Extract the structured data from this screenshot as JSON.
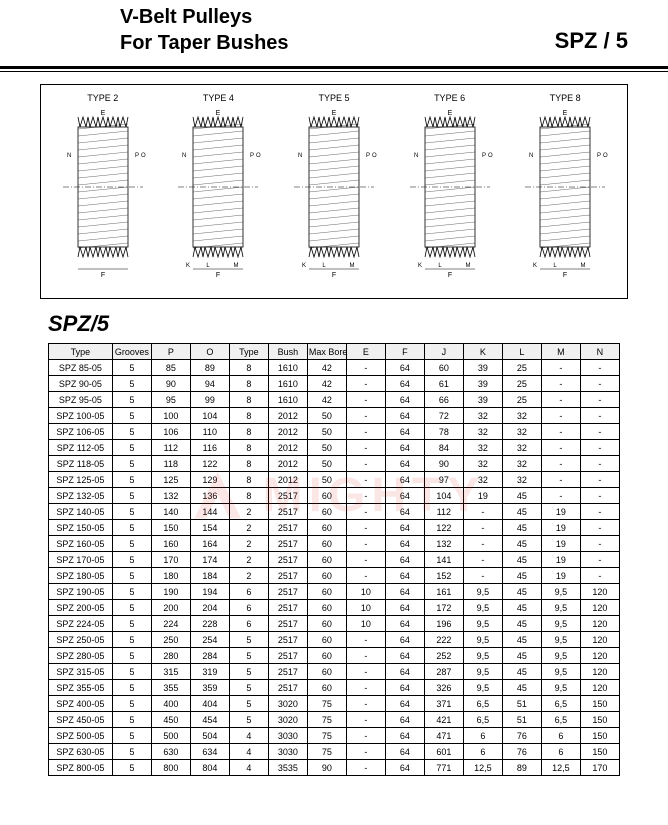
{
  "header": {
    "title_line1": "V-Belt  Pulleys",
    "title_line2": "For Taper Bushes",
    "right_label": "SPZ / 5"
  },
  "diagrams": {
    "labels": [
      "TYPE 2",
      "TYPE 4",
      "TYPE 5",
      "TYPE 6",
      "TYPE 8"
    ],
    "dim_letters": [
      "E",
      "F",
      "L",
      "M",
      "N",
      "K",
      "P",
      "O"
    ]
  },
  "section_title": "SPZ/5",
  "table": {
    "columns": [
      "Type",
      "Grooves",
      "P",
      "O",
      "Type",
      "Bush",
      "Max Bore",
      "E",
      "F",
      "J",
      "K",
      "L",
      "M",
      "N"
    ],
    "rows": [
      [
        "SPZ  85-05",
        "5",
        "85",
        "89",
        "8",
        "1610",
        "42",
        "-",
        "64",
        "60",
        "39",
        "25",
        "-",
        "-"
      ],
      [
        "SPZ  90-05",
        "5",
        "90",
        "94",
        "8",
        "1610",
        "42",
        "-",
        "64",
        "61",
        "39",
        "25",
        "-",
        "-"
      ],
      [
        "SPZ  95-05",
        "5",
        "95",
        "99",
        "8",
        "1610",
        "42",
        "-",
        "64",
        "66",
        "39",
        "25",
        "-",
        "-"
      ],
      [
        "SPZ 100-05",
        "5",
        "100",
        "104",
        "8",
        "2012",
        "50",
        "-",
        "64",
        "72",
        "32",
        "32",
        "-",
        "-"
      ],
      [
        "SPZ 106-05",
        "5",
        "106",
        "110",
        "8",
        "2012",
        "50",
        "-",
        "64",
        "78",
        "32",
        "32",
        "-",
        "-"
      ],
      [
        "SPZ 112-05",
        "5",
        "112",
        "116",
        "8",
        "2012",
        "50",
        "-",
        "64",
        "84",
        "32",
        "32",
        "-",
        "-"
      ],
      [
        "SPZ 118-05",
        "5",
        "118",
        "122",
        "8",
        "2012",
        "50",
        "-",
        "64",
        "90",
        "32",
        "32",
        "-",
        "-"
      ],
      [
        "SPZ 125-05",
        "5",
        "125",
        "129",
        "8",
        "2012",
        "50",
        "-",
        "64",
        "97",
        "32",
        "32",
        "-",
        "-"
      ],
      [
        "SPZ 132-05",
        "5",
        "132",
        "136",
        "8",
        "2517",
        "60",
        "-",
        "64",
        "104",
        "19",
        "45",
        "-",
        "-"
      ],
      [
        "SPZ 140-05",
        "5",
        "140",
        "144",
        "2",
        "2517",
        "60",
        "-",
        "64",
        "112",
        "-",
        "45",
        "19",
        "-"
      ],
      [
        "SPZ 150-05",
        "5",
        "150",
        "154",
        "2",
        "2517",
        "60",
        "-",
        "64",
        "122",
        "-",
        "45",
        "19",
        "-"
      ],
      [
        "SPZ 160-05",
        "5",
        "160",
        "164",
        "2",
        "2517",
        "60",
        "-",
        "64",
        "132",
        "-",
        "45",
        "19",
        "-"
      ],
      [
        "SPZ 170-05",
        "5",
        "170",
        "174",
        "2",
        "2517",
        "60",
        "-",
        "64",
        "141",
        "-",
        "45",
        "19",
        "-"
      ],
      [
        "SPZ 180-05",
        "5",
        "180",
        "184",
        "2",
        "2517",
        "60",
        "-",
        "64",
        "152",
        "-",
        "45",
        "19",
        "-"
      ],
      [
        "SPZ 190-05",
        "5",
        "190",
        "194",
        "6",
        "2517",
        "60",
        "10",
        "64",
        "161",
        "9,5",
        "45",
        "9,5",
        "120"
      ],
      [
        "SPZ 200-05",
        "5",
        "200",
        "204",
        "6",
        "2517",
        "60",
        "10",
        "64",
        "172",
        "9,5",
        "45",
        "9,5",
        "120"
      ],
      [
        "SPZ 224-05",
        "5",
        "224",
        "228",
        "6",
        "2517",
        "60",
        "10",
        "64",
        "196",
        "9,5",
        "45",
        "9,5",
        "120"
      ],
      [
        "SPZ 250-05",
        "5",
        "250",
        "254",
        "5",
        "2517",
        "60",
        "-",
        "64",
        "222",
        "9,5",
        "45",
        "9,5",
        "120"
      ],
      [
        "SPZ 280-05",
        "5",
        "280",
        "284",
        "5",
        "2517",
        "60",
        "-",
        "64",
        "252",
        "9,5",
        "45",
        "9,5",
        "120"
      ],
      [
        "SPZ 315-05",
        "5",
        "315",
        "319",
        "5",
        "2517",
        "60",
        "-",
        "64",
        "287",
        "9,5",
        "45",
        "9,5",
        "120"
      ],
      [
        "SPZ 355-05",
        "5",
        "355",
        "359",
        "5",
        "2517",
        "60",
        "-",
        "64",
        "326",
        "9,5",
        "45",
        "9,5",
        "120"
      ],
      [
        "SPZ 400-05",
        "5",
        "400",
        "404",
        "5",
        "3020",
        "75",
        "-",
        "64",
        "371",
        "6,5",
        "51",
        "6,5",
        "150"
      ],
      [
        "SPZ 450-05",
        "5",
        "450",
        "454",
        "5",
        "3020",
        "75",
        "-",
        "64",
        "421",
        "6,5",
        "51",
        "6,5",
        "150"
      ],
      [
        "SPZ 500-05",
        "5",
        "500",
        "504",
        "4",
        "3030",
        "75",
        "-",
        "64",
        "471",
        "6",
        "76",
        "6",
        "150"
      ],
      [
        "SPZ 630-05",
        "5",
        "630",
        "634",
        "4",
        "3030",
        "75",
        "-",
        "64",
        "601",
        "6",
        "76",
        "6",
        "150"
      ],
      [
        "SPZ 800-05",
        "5",
        "800",
        "804",
        "4",
        "3535",
        "90",
        "-",
        "64",
        "771",
        "12,5",
        "89",
        "12,5",
        "170"
      ]
    ]
  },
  "watermark_text": "MIGHTY",
  "style": {
    "background": "#ffffff",
    "text_color": "#000000",
    "watermark_color": "rgba(220,50,50,0.12)",
    "header_fontsize": 20,
    "right_label_fontsize": 22,
    "section_title_fontsize": 22,
    "table_fontsize": 9,
    "diagram_label_fontsize": 9
  }
}
